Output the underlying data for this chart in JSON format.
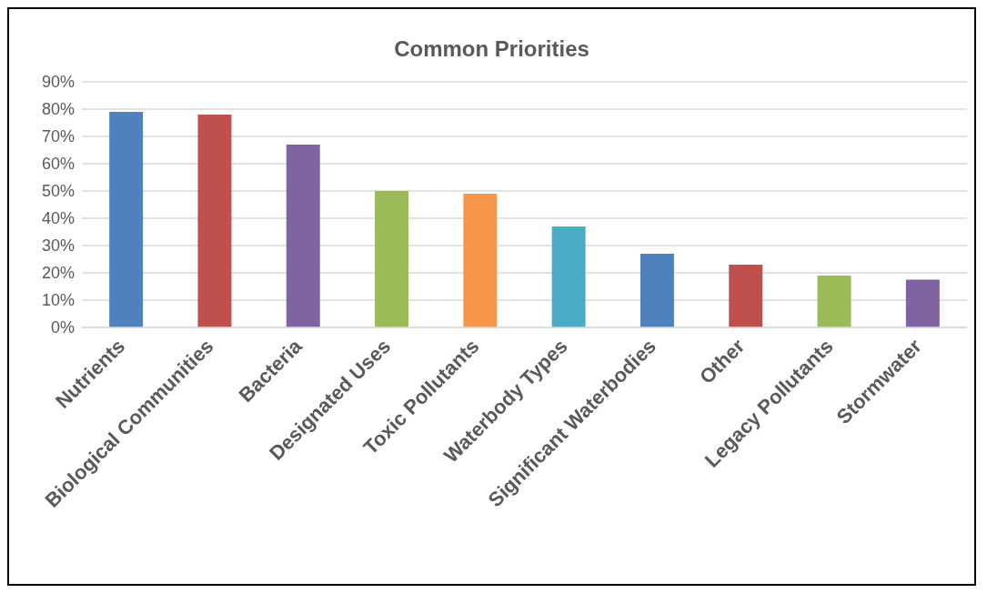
{
  "chart_data": {
    "type": "bar",
    "title": "Common Priorities",
    "categories": [
      "Nutrients",
      "Biological Communities",
      "Bacteria",
      "Designated Uses",
      "Toxic Pollutants",
      "Waterbody Types",
      "Significant Waterbodies",
      "Other",
      "Legacy Pollutants",
      "Stormwater"
    ],
    "values": [
      79,
      78,
      67,
      50,
      49,
      37,
      27,
      23,
      19,
      17.5
    ],
    "colors": [
      "#4f81bd",
      "#c0504d",
      "#8064a2",
      "#9bbb59",
      "#f79646",
      "#4bacc6",
      "#4f81bd",
      "#c0504d",
      "#9bbb59",
      "#8064a2"
    ],
    "ylim": [
      0,
      90
    ],
    "yticks": [
      {
        "value": 0,
        "label": "0%"
      },
      {
        "value": 10,
        "label": "10%"
      },
      {
        "value": 20,
        "label": "20%"
      },
      {
        "value": 30,
        "label": "30%"
      },
      {
        "value": 40,
        "label": "40%"
      },
      {
        "value": 50,
        "label": "50%"
      },
      {
        "value": 60,
        "label": "60%"
      },
      {
        "value": 70,
        "label": "70%"
      },
      {
        "value": 80,
        "label": "80%"
      },
      {
        "value": 90,
        "label": "90%"
      }
    ],
    "grid": "y"
  }
}
